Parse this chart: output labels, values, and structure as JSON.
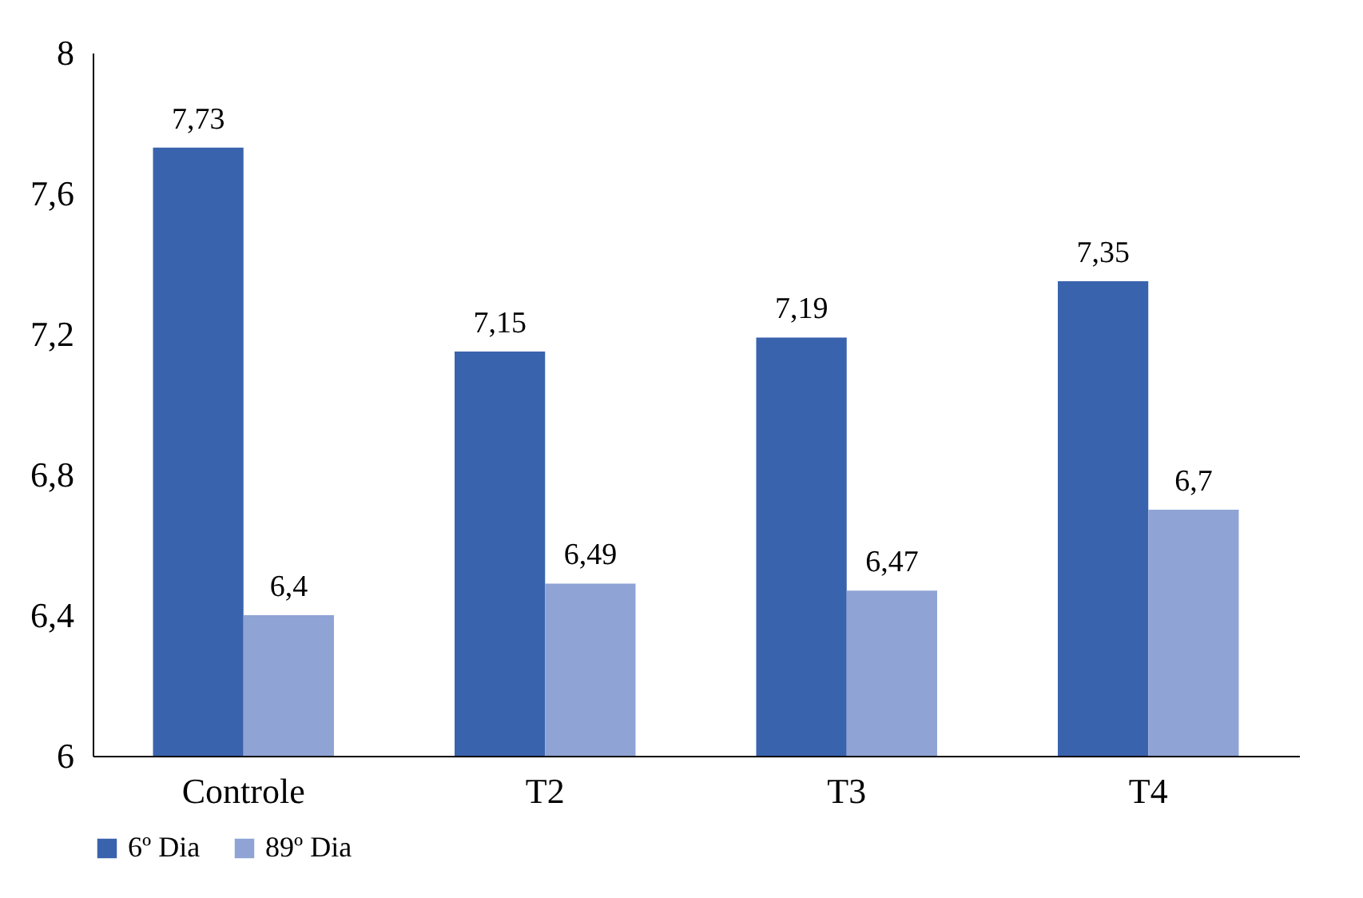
{
  "chart_data": {
    "type": "bar",
    "categories": [
      "Controle",
      "T2",
      "T3",
      "T4"
    ],
    "series": [
      {
        "name": "6º Dia",
        "color": "#3a63ad",
        "values": [
          7.73,
          7.15,
          7.19,
          7.35
        ],
        "value_labels": [
          "7,73",
          "7,15",
          "7,19",
          "7,35"
        ]
      },
      {
        "name": "89º Dia",
        "color": "#8fa4d5",
        "values": [
          6.4,
          6.49,
          6.47,
          6.7
        ],
        "value_labels": [
          "6,4",
          "6,49",
          "6,47",
          "6,7"
        ]
      }
    ],
    "ylim": [
      6,
      8
    ],
    "yticks": [
      {
        "value": 6,
        "label": "6"
      },
      {
        "value": 6.4,
        "label": "6,4"
      },
      {
        "value": 6.8,
        "label": "6,8"
      },
      {
        "value": 7.2,
        "label": "7,2"
      },
      {
        "value": 7.6,
        "label": "7,6"
      },
      {
        "value": 8,
        "label": "8"
      }
    ],
    "grid": false,
    "legend": "bottom"
  }
}
